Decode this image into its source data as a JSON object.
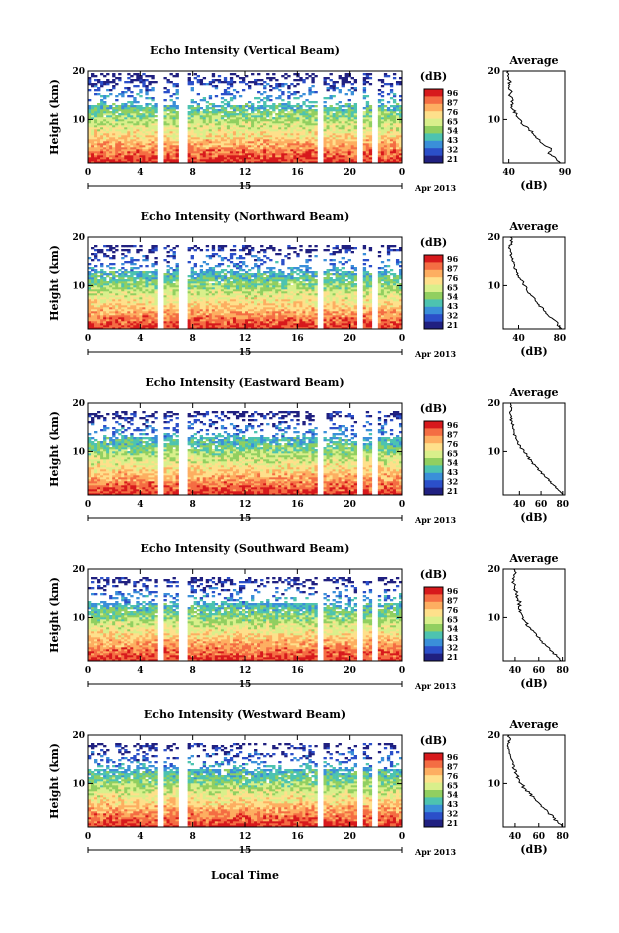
{
  "page": {
    "xlabel": "Local Time",
    "colorbar_unit": "(dB)",
    "colorbar_ticks": [
      "96",
      "87",
      "76",
      "65",
      "54",
      "43",
      "32",
      "21"
    ],
    "colorbar_colors": [
      "#d7191c",
      "#f46d43",
      "#fdae61",
      "#fee08b",
      "#d9ef8b",
      "#91cf60",
      "#4dc3b0",
      "#3a8fd9",
      "#2b4fc9",
      "#202080"
    ],
    "date_day": "15",
    "date_month": "Apr 2013"
  },
  "chart_data": [
    {
      "type": "heatmap",
      "title": "Echo Intensity (Vertical Beam)",
      "ylabel": "Height (km)",
      "xlim": [
        0,
        24
      ],
      "ylim": [
        1,
        20
      ],
      "x_ticks": [
        "0",
        "4",
        "8",
        "12",
        "16",
        "20",
        "0"
      ],
      "y_ticks": [
        "20",
        "10"
      ],
      "data_gaps_hours": [
        [
          5.2,
          5.8
        ],
        [
          6.9,
          7.5
        ],
        [
          17.6,
          18.1
        ],
        [
          20.5,
          20.9
        ],
        [
          21.8,
          22.2
        ]
      ],
      "echo_top_km": 19.5,
      "profile": {
        "title": "Average",
        "xlabel": "(dB)",
        "xlim": [
          35,
          90
        ],
        "x_ticks": [
          "40",
          "90"
        ],
        "y_ticks": [
          "20",
          "10"
        ],
        "height_km": [
          1,
          2,
          3,
          4,
          5,
          6,
          7,
          8,
          9,
          10,
          11,
          12,
          13,
          14,
          15,
          16,
          17,
          18,
          19,
          20
        ],
        "value_db": [
          86,
          82,
          75,
          78,
          70,
          66,
          62,
          58,
          52,
          50,
          47,
          44,
          42,
          44,
          40,
          42,
          40,
          41,
          39,
          40
        ]
      }
    },
    {
      "type": "heatmap",
      "title": "Echo Intensity (Northward Beam)",
      "ylabel": "Height (km)",
      "xlim": [
        0,
        24
      ],
      "ylim": [
        1,
        20
      ],
      "x_ticks": [
        "0",
        "4",
        "8",
        "12",
        "16",
        "20",
        "0"
      ],
      "y_ticks": [
        "20",
        "10"
      ],
      "data_gaps_hours": [
        [
          5.2,
          5.8
        ],
        [
          6.9,
          7.5
        ],
        [
          17.6,
          18.1
        ],
        [
          20.5,
          20.9
        ],
        [
          21.8,
          22.2
        ]
      ],
      "echo_top_km": 18.5,
      "profile": {
        "title": "Average",
        "xlabel": "(dB)",
        "xlim": [
          25,
          85
        ],
        "x_ticks": [
          "40",
          "80"
        ],
        "y_ticks": [
          "20",
          "10"
        ],
        "height_km": [
          1,
          2,
          3,
          4,
          5,
          6,
          7,
          8,
          9,
          10,
          11,
          12,
          13,
          14,
          15,
          16,
          17,
          18,
          19,
          20
        ],
        "value_db": [
          82,
          78,
          74,
          68,
          64,
          60,
          56,
          52,
          48,
          46,
          44,
          40,
          38,
          36,
          34,
          33,
          32,
          31,
          34,
          32
        ]
      }
    },
    {
      "type": "heatmap",
      "title": "Echo Intensity (Eastward Beam)",
      "ylabel": "Height (km)",
      "xlim": [
        0,
        24
      ],
      "ylim": [
        1,
        20
      ],
      "x_ticks": [
        "0",
        "4",
        "8",
        "12",
        "16",
        "20",
        "0"
      ],
      "y_ticks": [
        "20",
        "10"
      ],
      "data_gaps_hours": [
        [
          5.2,
          5.8
        ],
        [
          6.9,
          7.5
        ],
        [
          17.6,
          18.1
        ],
        [
          20.5,
          20.9
        ],
        [
          21.8,
          22.2
        ]
      ],
      "echo_top_km": 18.5,
      "profile": {
        "title": "Average",
        "xlabel": "(dB)",
        "xlim": [
          25,
          82
        ],
        "x_ticks": [
          "40",
          "60",
          "80"
        ],
        "y_ticks": [
          "20",
          "10"
        ],
        "height_km": [
          1,
          2,
          3,
          4,
          5,
          6,
          7,
          8,
          9,
          10,
          11,
          12,
          13,
          14,
          15,
          16,
          17,
          18,
          19,
          20
        ],
        "value_db": [
          80,
          76,
          72,
          67,
          63,
          59,
          55,
          51,
          47,
          44,
          41,
          39,
          37,
          35,
          34,
          33,
          32,
          31,
          33,
          32
        ]
      }
    },
    {
      "type": "heatmap",
      "title": "Echo Intensity (Southward Beam)",
      "ylabel": "Height (km)",
      "xlim": [
        0,
        24
      ],
      "ylim": [
        1,
        20
      ],
      "x_ticks": [
        "0",
        "4",
        "8",
        "12",
        "16",
        "20",
        "0"
      ],
      "y_ticks": [
        "20",
        "10"
      ],
      "data_gaps_hours": [
        [
          5.2,
          5.8
        ],
        [
          6.9,
          7.5
        ],
        [
          17.6,
          18.1
        ],
        [
          20.5,
          20.9
        ],
        [
          21.8,
          22.2
        ]
      ],
      "echo_top_km": 18.5,
      "profile": {
        "title": "Average",
        "xlabel": "(dB)",
        "xlim": [
          30,
          82
        ],
        "x_ticks": [
          "40",
          "60",
          "80"
        ],
        "y_ticks": [
          "20",
          "10"
        ],
        "height_km": [
          1,
          2,
          3,
          4,
          5,
          6,
          7,
          8,
          9,
          10,
          11,
          12,
          13,
          14,
          15,
          16,
          17,
          18,
          19,
          20
        ],
        "value_db": [
          79,
          75,
          71,
          67,
          63,
          59,
          56,
          52,
          49,
          47,
          45,
          43,
          44,
          42,
          41,
          40,
          39,
          38,
          40,
          39
        ]
      }
    },
    {
      "type": "heatmap",
      "title": "Echo Intensity (Westward Beam)",
      "ylabel": "Height (km)",
      "xlim": [
        0,
        24
      ],
      "ylim": [
        1,
        20
      ],
      "x_ticks": [
        "0",
        "4",
        "8",
        "12",
        "16",
        "20",
        "0"
      ],
      "y_ticks": [
        "20",
        "10"
      ],
      "data_gaps_hours": [
        [
          5.2,
          5.8
        ],
        [
          6.9,
          7.5
        ],
        [
          17.6,
          18.1
        ],
        [
          20.5,
          20.9
        ],
        [
          21.8,
          22.2
        ]
      ],
      "echo_top_km": 18.5,
      "profile": {
        "title": "Average",
        "xlabel": "(dB)",
        "xlim": [
          30,
          82
        ],
        "x_ticks": [
          "40",
          "60",
          "80"
        ],
        "y_ticks": [
          "20",
          "10"
        ],
        "height_km": [
          1,
          2,
          3,
          4,
          5,
          6,
          7,
          8,
          9,
          10,
          11,
          12,
          13,
          14,
          15,
          16,
          17,
          18,
          19,
          20
        ],
        "value_db": [
          80,
          76,
          72,
          68,
          64,
          60,
          56,
          52,
          48,
          45,
          43,
          41,
          39,
          38,
          37,
          36,
          35,
          34,
          36,
          35
        ]
      }
    }
  ]
}
